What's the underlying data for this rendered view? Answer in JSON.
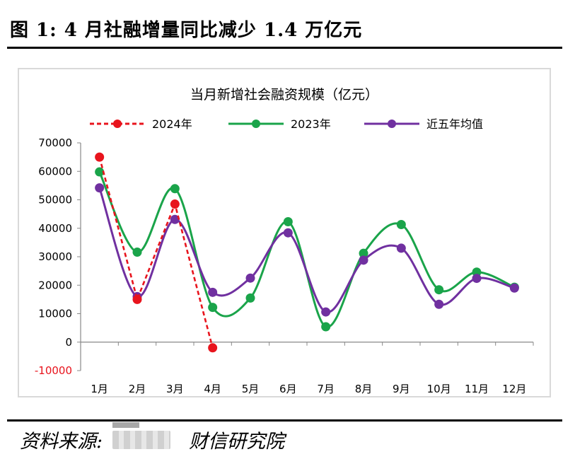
{
  "figure_title": "图 1:  4 月社融增量同比减少 1.4 万亿元",
  "source_label": "资料来源:",
  "source_name": "财信研究院",
  "chart_data": {
    "type": "line",
    "title": "当月新增社会融资规模（亿元）",
    "categories": [
      "1月",
      "2月",
      "3月",
      "4月",
      "5月",
      "6月",
      "7月",
      "8月",
      "9月",
      "10月",
      "11月",
      "12月"
    ],
    "ylim": [
      -10000,
      70000
    ],
    "yticks": [
      -10000,
      0,
      10000,
      20000,
      30000,
      40000,
      50000,
      60000,
      70000
    ],
    "grid": false,
    "legend_position": "top",
    "series": [
      {
        "name": "2024年",
        "color": "#e8141d",
        "style": "dashed",
        "values": [
          65000,
          15000,
          48500,
          -2000,
          null,
          null,
          null,
          null,
          null,
          null,
          null,
          null
        ]
      },
      {
        "name": "2023年",
        "color": "#1aa44a",
        "style": "smooth",
        "values": [
          59800,
          31600,
          53900,
          12200,
          15500,
          42300,
          5400,
          31200,
          41300,
          18400,
          24600,
          19300
        ]
      },
      {
        "name": "近五年均值",
        "color": "#7030a0",
        "style": "smooth",
        "values": [
          54200,
          16000,
          43100,
          17500,
          22500,
          38400,
          10600,
          28800,
          33000,
          13300,
          22400,
          19000
        ]
      }
    ]
  }
}
